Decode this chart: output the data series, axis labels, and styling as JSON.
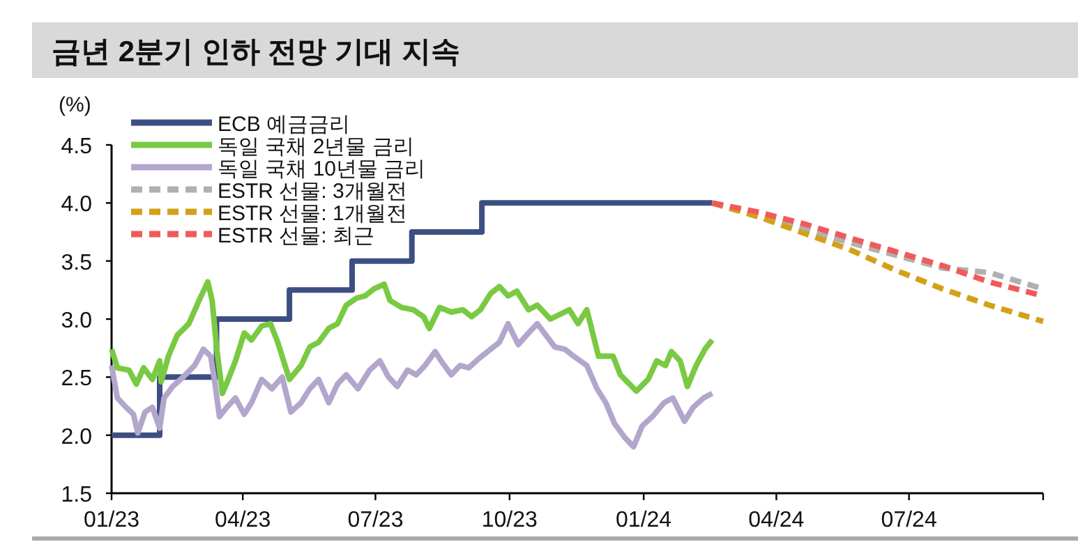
{
  "chart_data": {
    "type": "line",
    "title": "금년 2분기 인하 전망 기대 지속",
    "ylabel": "(%)",
    "xlim": [
      "2023-01-01",
      "2024-10-01"
    ],
    "xticks": [
      {
        "value": "2023-01-01",
        "label": "01/23"
      },
      {
        "value": "2023-04-01",
        "label": "04/23"
      },
      {
        "value": "2023-07-01",
        "label": "07/23"
      },
      {
        "value": "2023-10-01",
        "label": "10/23"
      },
      {
        "value": "2024-01-01",
        "label": "01/24"
      },
      {
        "value": "2024-04-01",
        "label": "04/24"
      },
      {
        "value": "2024-07-01",
        "label": "07/24"
      },
      {
        "value": "2024-10-01",
        "label": null
      }
    ],
    "ylim": [
      1.5,
      4.5
    ],
    "yticks": [
      {
        "value": 1.5,
        "label": "1.5"
      },
      {
        "value": 2.0,
        "label": "2.0"
      },
      {
        "value": 2.5,
        "label": "2.5"
      },
      {
        "value": 3.0,
        "label": "3.0"
      },
      {
        "value": 3.5,
        "label": "3.5"
      },
      {
        "value": 4.0,
        "label": "4.0"
      },
      {
        "value": 4.5,
        "label": "4.5"
      }
    ],
    "legend": "top left",
    "grid": false,
    "series": [
      {
        "name": "ECB 예금금리",
        "type": "step",
        "color": "#3d4f82",
        "x": [
          "2023-01-01",
          "2023-02-03",
          "2023-03-14",
          "2023-05-03",
          "2023-06-15",
          "2023-07-26",
          "2023-09-12",
          "2024-02-17"
        ],
        "values": [
          2.0,
          2.5,
          3.0,
          3.25,
          3.5,
          3.75,
          4.0,
          4.0
        ]
      },
      {
        "name": "독일 국채 2년물 금리",
        "type": "line",
        "color": "#7ac943",
        "x": [
          "2023-01-01",
          "2023-01-05",
          "2023-01-13",
          "2023-01-18",
          "2023-01-23",
          "2023-01-29",
          "2023-02-03",
          "2023-02-04",
          "2023-02-09",
          "2023-02-15",
          "2023-02-23",
          "2023-03-02",
          "2023-03-08",
          "2023-03-11",
          "2023-03-14",
          "2023-03-18",
          "2023-03-22",
          "2023-03-27",
          "2023-04-02",
          "2023-04-07",
          "2023-04-14",
          "2023-04-20",
          "2023-04-25",
          "2023-05-03",
          "2023-05-11",
          "2023-05-17",
          "2023-05-23",
          "2023-05-30",
          "2023-06-05",
          "2023-06-11",
          "2023-06-18",
          "2023-06-24",
          "2023-06-30",
          "2023-07-07",
          "2023-07-11",
          "2023-07-19",
          "2023-07-27",
          "2023-08-03",
          "2023-08-07",
          "2023-08-14",
          "2023-08-22",
          "2023-08-30",
          "2023-09-05",
          "2023-09-11",
          "2023-09-18",
          "2023-09-24",
          "2023-09-30",
          "2023-10-06",
          "2023-10-14",
          "2023-10-20",
          "2023-10-29",
          "2023-11-11",
          "2023-11-17",
          "2023-11-23",
          "2023-12-01",
          "2023-12-11",
          "2023-12-16",
          "2023-12-27",
          "2024-01-04",
          "2024-01-10",
          "2024-01-16",
          "2024-01-20",
          "2024-01-26",
          "2024-01-31",
          "2024-02-06",
          "2024-02-12",
          "2024-02-17"
        ],
        "values": [
          2.74,
          2.58,
          2.56,
          2.44,
          2.58,
          2.48,
          2.64,
          2.46,
          2.68,
          2.86,
          2.96,
          3.16,
          3.32,
          3.16,
          2.76,
          2.36,
          2.48,
          2.64,
          2.88,
          2.82,
          2.94,
          2.96,
          2.8,
          2.48,
          2.6,
          2.76,
          2.8,
          2.92,
          2.96,
          3.12,
          3.18,
          3.2,
          3.26,
          3.3,
          3.16,
          3.1,
          3.08,
          3.02,
          2.92,
          3.1,
          3.06,
          3.08,
          3.02,
          3.08,
          3.22,
          3.28,
          3.2,
          3.24,
          3.08,
          3.12,
          3.0,
          3.08,
          2.96,
          3.08,
          2.68,
          2.68,
          2.52,
          2.38,
          2.48,
          2.64,
          2.6,
          2.72,
          2.64,
          2.42,
          2.6,
          2.74,
          2.82
        ]
      },
      {
        "name": "독일 국채 10년물 금리",
        "type": "line",
        "color": "#b3a6cc",
        "x": [
          "2023-01-01",
          "2023-01-05",
          "2023-01-11",
          "2023-01-16",
          "2023-01-19",
          "2023-01-24",
          "2023-01-29",
          "2023-02-03",
          "2023-02-06",
          "2023-02-12",
          "2023-02-19",
          "2023-02-27",
          "2023-03-05",
          "2023-03-10",
          "2023-03-13",
          "2023-03-16",
          "2023-03-21",
          "2023-03-27",
          "2023-04-02",
          "2023-04-07",
          "2023-04-14",
          "2023-04-21",
          "2023-04-28",
          "2023-05-04",
          "2023-05-11",
          "2023-05-17",
          "2023-05-23",
          "2023-05-30",
          "2023-06-05",
          "2023-06-11",
          "2023-06-19",
          "2023-06-27",
          "2023-07-04",
          "2023-07-10",
          "2023-07-16",
          "2023-07-23",
          "2023-07-29",
          "2023-08-04",
          "2023-08-11",
          "2023-08-15",
          "2023-08-22",
          "2023-08-28",
          "2023-09-03",
          "2023-09-10",
          "2023-09-16",
          "2023-09-24",
          "2023-09-30",
          "2023-10-07",
          "2023-10-14",
          "2023-10-20",
          "2023-11-01",
          "2023-11-08",
          "2023-11-14",
          "2023-11-23",
          "2023-11-30",
          "2023-12-06",
          "2023-12-12",
          "2023-12-19",
          "2023-12-25",
          "2023-12-31",
          "2024-01-07",
          "2024-01-15",
          "2024-01-21",
          "2024-01-29",
          "2024-02-04",
          "2024-02-11",
          "2024-02-17"
        ],
        "values": [
          2.6,
          2.32,
          2.24,
          2.18,
          2.02,
          2.2,
          2.24,
          2.06,
          2.32,
          2.42,
          2.5,
          2.6,
          2.74,
          2.68,
          2.44,
          2.16,
          2.24,
          2.32,
          2.18,
          2.28,
          2.48,
          2.4,
          2.5,
          2.2,
          2.28,
          2.4,
          2.48,
          2.28,
          2.44,
          2.52,
          2.4,
          2.56,
          2.64,
          2.5,
          2.42,
          2.56,
          2.52,
          2.6,
          2.72,
          2.64,
          2.52,
          2.6,
          2.58,
          2.66,
          2.72,
          2.8,
          2.96,
          2.78,
          2.88,
          2.96,
          2.76,
          2.74,
          2.68,
          2.6,
          2.4,
          2.28,
          2.1,
          1.98,
          1.9,
          2.08,
          2.16,
          2.28,
          2.32,
          2.12,
          2.24,
          2.32,
          2.36
        ]
      },
      {
        "name": "ESTR 선물: 3개월전",
        "type": "line",
        "line_style": "dashed",
        "color": "#b0b0b0",
        "x": [
          "2024-02-17",
          "2024-04-20",
          "2024-05-21",
          "2024-06-22",
          "2024-07-24",
          "2024-08-25",
          "2024-10-01"
        ],
        "values": [
          4.0,
          3.77,
          3.66,
          3.55,
          3.44,
          3.4,
          3.26
        ]
      },
      {
        "name": "ESTR 선물: 1개월전",
        "type": "line",
        "line_style": "dashed",
        "color": "#d4a017",
        "x": [
          "2024-02-17",
          "2024-03-20",
          "2024-04-20",
          "2024-05-21",
          "2024-06-22",
          "2024-07-24",
          "2024-08-25",
          "2024-10-01"
        ],
        "values": [
          4.0,
          3.88,
          3.74,
          3.6,
          3.42,
          3.26,
          3.12,
          2.98
        ]
      },
      {
        "name": "ESTR 선물: 최근",
        "type": "line",
        "line_style": "dashed",
        "color": "#f15a5a",
        "x": [
          "2024-02-17",
          "2024-03-20",
          "2024-04-20",
          "2024-05-21",
          "2024-06-22",
          "2024-07-24",
          "2024-08-25",
          "2024-10-01"
        ],
        "values": [
          4.0,
          3.92,
          3.82,
          3.7,
          3.58,
          3.46,
          3.32,
          3.2
        ]
      }
    ]
  }
}
